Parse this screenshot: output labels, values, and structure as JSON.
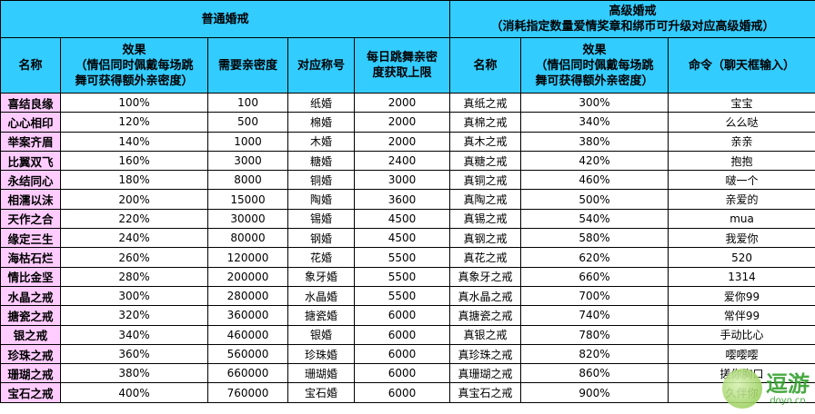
{
  "headers": {
    "normal_title": "普通婚戒",
    "advanced_title": "高级婚戒",
    "advanced_subtitle": "（消耗指定数量爱情奖章和绑币可升级对应高级婚戒）",
    "name": "名称",
    "effect_l1": "效果",
    "effect_l2": "（情侣同时佩戴每场跳",
    "effect_l3": "舞可获得额外亲密度）",
    "intimacy": "需要亲密度",
    "title": "对应称号",
    "daily_l1": "每日跳舞亲密",
    "daily_l2": "度获取上限",
    "adv_name": "名称",
    "adv_effect_l1": "效果",
    "adv_effect_l2": "（情侣同时佩戴每场跳",
    "adv_effect_l3": "舞可获得额外亲密度）",
    "command": "命令（聊天框输入）"
  },
  "rows": [
    {
      "name": "喜结良缘",
      "effect": "100%",
      "intimacy": "100",
      "title": "纸婚",
      "daily": "2000",
      "adv_name": "真纸之戒",
      "adv_effect": "300%",
      "command": "宝宝"
    },
    {
      "name": "心心相印",
      "effect": "120%",
      "intimacy": "500",
      "title": "棉婚",
      "daily": "2000",
      "adv_name": "真棉之戒",
      "adv_effect": "340%",
      "command": "么么哒"
    },
    {
      "name": "举案齐眉",
      "effect": "140%",
      "intimacy": "1000",
      "title": "木婚",
      "daily": "2000",
      "adv_name": "真木之戒",
      "adv_effect": "380%",
      "command": "亲亲"
    },
    {
      "name": "比翼双飞",
      "effect": "160%",
      "intimacy": "3000",
      "title": "糖婚",
      "daily": "2400",
      "adv_name": "真糖之戒",
      "adv_effect": "420%",
      "command": "抱抱"
    },
    {
      "name": "永结同心",
      "effect": "180%",
      "intimacy": "8000",
      "title": "铜婚",
      "daily": "3000",
      "adv_name": "真铜之戒",
      "adv_effect": "460%",
      "command": "啵一个"
    },
    {
      "name": "相濡以沫",
      "effect": "200%",
      "intimacy": "15000",
      "title": "陶婚",
      "daily": "3600",
      "adv_name": "真陶之戒",
      "adv_effect": "500%",
      "command": "亲爱的"
    },
    {
      "name": "天作之合",
      "effect": "220%",
      "intimacy": "30000",
      "title": "锡婚",
      "daily": "4500",
      "adv_name": "真锡之戒",
      "adv_effect": "540%",
      "command": "mua"
    },
    {
      "name": "缘定三生",
      "effect": "240%",
      "intimacy": "80000",
      "title": "钢婚",
      "daily": "4500",
      "adv_name": "真钢之戒",
      "adv_effect": "580%",
      "command": "我爱你"
    },
    {
      "name": "海枯石烂",
      "effect": "260%",
      "intimacy": "120000",
      "title": "花婚",
      "daily": "5500",
      "adv_name": "真花之戒",
      "adv_effect": "620%",
      "command": "520"
    },
    {
      "name": "情比金坚",
      "effect": "280%",
      "intimacy": "200000",
      "title": "象牙婚",
      "daily": "5500",
      "adv_name": "真象牙之戒",
      "adv_effect": "660%",
      "command": "1314"
    },
    {
      "name": "水晶之戒",
      "effect": "300%",
      "intimacy": "280000",
      "title": "水晶婚",
      "daily": "5500",
      "adv_name": "真水晶之戒",
      "adv_effect": "700%",
      "command": "爱你99"
    },
    {
      "name": "搪瓷之戒",
      "effect": "320%",
      "intimacy": "360000",
      "title": "搪瓷婚",
      "daily": "6000",
      "adv_name": "真搪瓷之戒",
      "adv_effect": "740%",
      "command": "常伴99"
    },
    {
      "name": "银之戒",
      "effect": "340%",
      "intimacy": "460000",
      "title": "银婚",
      "daily": "6000",
      "adv_name": "真银之戒",
      "adv_effect": "780%",
      "command": "手动比心"
    },
    {
      "name": "珍珠之戒",
      "effect": "360%",
      "intimacy": "560000",
      "title": "珍珠婚",
      "daily": "6000",
      "adv_name": "真珍珠之戒",
      "adv_effect": "820%",
      "command": "嘤嘤嘤"
    },
    {
      "name": "珊瑚之戒",
      "effect": "380%",
      "intimacy": "660000",
      "title": "珊瑚婚",
      "daily": "6000",
      "adv_name": "真珊瑚之戒",
      "adv_effect": "860%",
      "command": "搓你胸口"
    },
    {
      "name": "宝石之戒",
      "effect": "400%",
      "intimacy": "760000",
      "title": "宝石婚",
      "daily": "6000",
      "adv_name": "真宝石之戒",
      "adv_effect": "900%",
      "command": "久伴你"
    }
  ],
  "watermark": {
    "name": "逗游",
    "url": "doyo.cn"
  },
  "colors": {
    "header_bg": "#33ccff",
    "name_bg": "#ffccff",
    "border": "#000000"
  }
}
